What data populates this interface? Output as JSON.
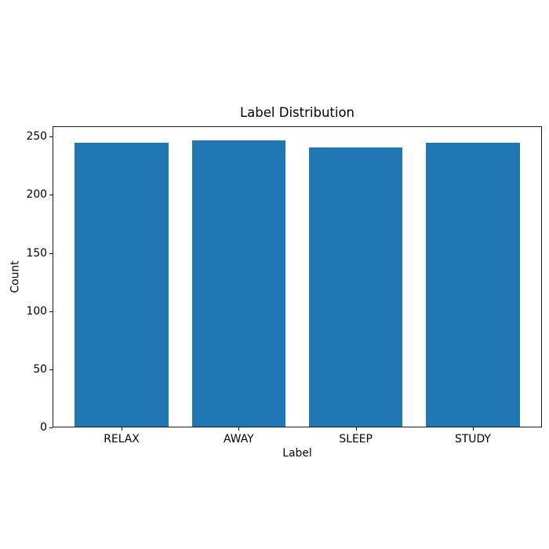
{
  "chart_data": {
    "type": "bar",
    "title": "Label Distribution",
    "xlabel": "Label",
    "ylabel": "Count",
    "categories": [
      "RELAX",
      "AWAY",
      "SLEEP",
      "STUDY"
    ],
    "values": [
      245,
      247,
      241,
      245
    ],
    "yticks": [
      0,
      50,
      100,
      150,
      200,
      250
    ],
    "ylim": [
      0,
      259
    ],
    "bar_color": "#1f77b4",
    "bar_width_fraction": 0.8,
    "x_margin": 0.05,
    "grid": false,
    "background_color": "#ffffff",
    "axes_edge_color": "#1a1a1a"
  }
}
